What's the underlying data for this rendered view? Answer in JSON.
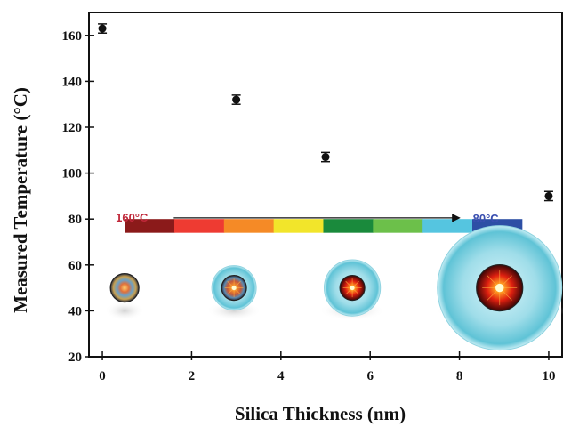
{
  "chart_data": {
    "type": "scatter",
    "xlabel": "Silica Thickness (nm)",
    "ylabel": "Measured Temperature (°C)",
    "xlim": [
      -0.3,
      10.3
    ],
    "ylim": [
      20,
      170
    ],
    "x_ticks": [
      0,
      2,
      4,
      6,
      8,
      10
    ],
    "y_ticks": [
      20,
      40,
      60,
      80,
      100,
      120,
      140,
      160
    ],
    "series": [
      {
        "x": [
          0,
          3,
          5,
          10
        ],
        "y": [
          163,
          132,
          107,
          90
        ],
        "err": [
          2,
          2,
          2,
          2
        ],
        "color": "#111111"
      }
    ],
    "annotations": {
      "start_label": "160°C",
      "end_label": "80°C",
      "start_color": "#c0283a",
      "end_color": "#3a4fb0",
      "arrow_x": [
        1.6,
        8.0
      ],
      "arrow_y": 80.5,
      "colorbar_x": [
        0.5,
        9.4
      ],
      "colorbar_y": [
        74,
        80
      ],
      "colorbar_colors": [
        "#8b1a1a",
        "#ee3b32",
        "#f58a26",
        "#f2e52a",
        "#1a8a3c",
        "#6cc04a",
        "#55c5e0",
        "#2d4fa5"
      ]
    },
    "particles": [
      {
        "x": 0.5,
        "y": 50,
        "shell": 0.0,
        "core_style": "multicolor"
      },
      {
        "x": 2.95,
        "y": 50,
        "shell": 1.0,
        "core_style": "mixed"
      },
      {
        "x": 5.6,
        "y": 50,
        "shell": 1.6,
        "core_style": "red"
      },
      {
        "x": 8.9,
        "y": 50,
        "shell": 4.0,
        "core_style": "red-glow"
      }
    ]
  }
}
